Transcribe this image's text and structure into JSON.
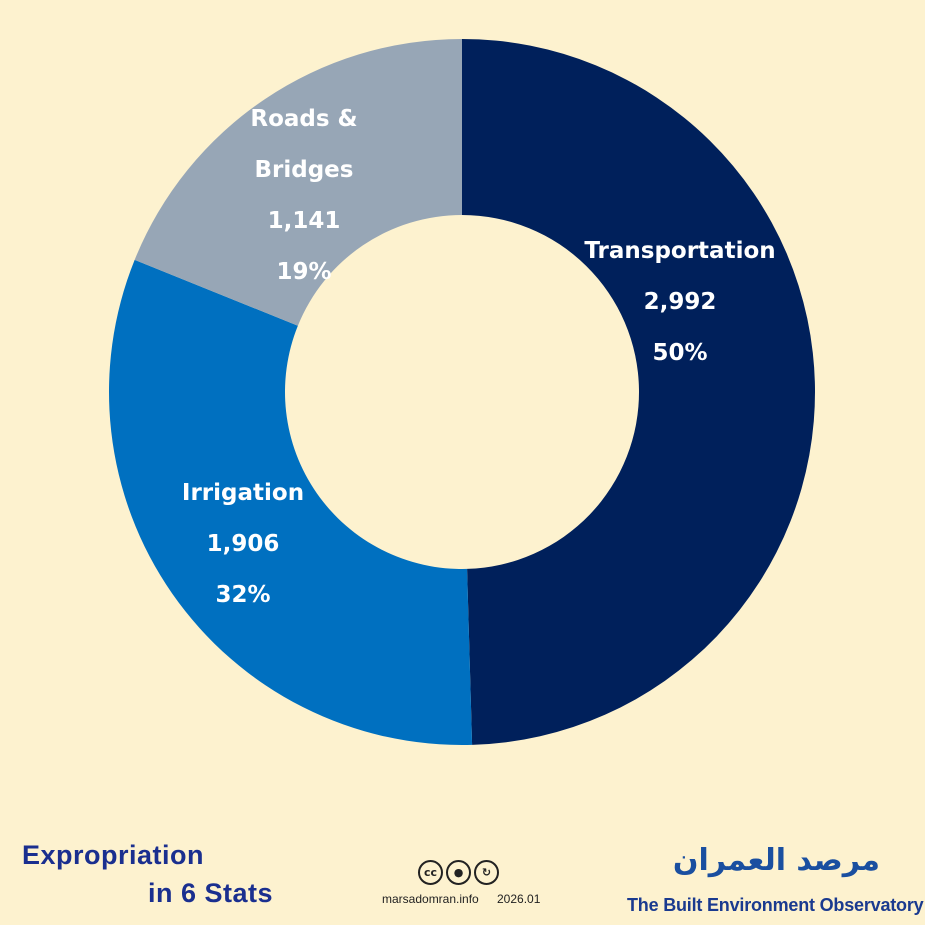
{
  "chart_data": {
    "type": "pie",
    "variant": "donut",
    "title": "",
    "slices": [
      {
        "label": "Transportation",
        "value": 2992,
        "value_text": "2,992",
        "percent_text": "50%",
        "color": "#00205b"
      },
      {
        "label": "Irrigation",
        "value": 1906,
        "value_text": "1,906",
        "percent_text": "32%",
        "color": "#0070c0"
      },
      {
        "label": "Roads & Bridges",
        "label_lines": [
          "Roads &",
          "Bridges"
        ],
        "value": 1141,
        "value_text": "1,141",
        "percent_text": "19%",
        "color": "#97a6b6"
      }
    ],
    "start": "12 o'clock",
    "direction": "clockwise",
    "legend": "none",
    "labels_on_slices": true
  },
  "footer": {
    "title_line1": "Expropriation",
    "title_line2": "in 6 Stats",
    "license_icons": [
      "cc-icon",
      "attribution-icon",
      "sharealike-icon"
    ],
    "license_glyphs": [
      "cc",
      "●",
      "↻"
    ],
    "site": "marsadomran.info",
    "date": "2026.01",
    "org_arabic": "مرصد العمران",
    "org_english": "The Built Environment Observatory"
  },
  "colors": {
    "background": "#fdf2cf",
    "title_blue": "#1a2f8f",
    "org_blue": "#1a4fa0"
  }
}
